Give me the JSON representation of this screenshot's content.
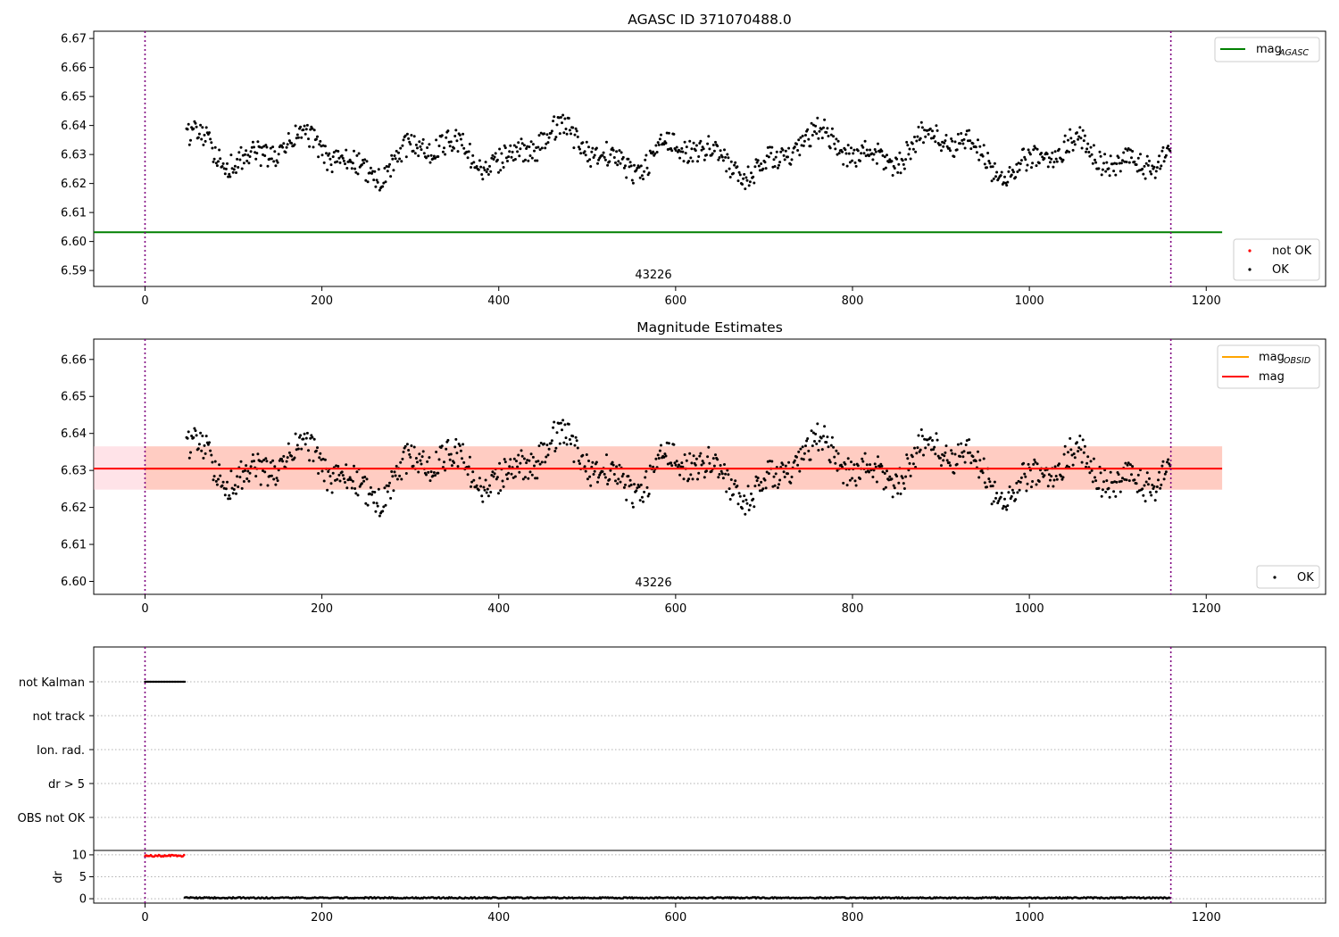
{
  "chart_data": [
    {
      "type": "scatter",
      "title": "AGASC ID 371070488.0",
      "xlim": [
        -58,
        1335
      ],
      "ylim": [
        6.5845,
        6.6725
      ],
      "xticks": [
        0,
        200,
        400,
        600,
        800,
        1000,
        1200
      ],
      "yticks": [
        "6.59",
        "6.60",
        "6.61",
        "6.62",
        "6.63",
        "6.64",
        "6.65",
        "6.66",
        "6.67"
      ],
      "annotation": "43226",
      "vlines": [
        0,
        1160
      ],
      "mag_agasc": 6.6032,
      "legend_upper": [
        {
          "label": "mag",
          "sub": "AGASC",
          "color": "#008000"
        }
      ],
      "legend_lower": [
        {
          "label": "not OK",
          "color": "#ff0000"
        },
        {
          "label": "OK",
          "color": "#000000"
        }
      ],
      "series": [
        {
          "name": "OK",
          "x_range": [
            47,
            1160
          ],
          "mean": 6.6305,
          "color": "#000000"
        }
      ]
    },
    {
      "type": "scatter",
      "title": "Magnitude Estimates",
      "xlim": [
        -58,
        1335
      ],
      "ylim": [
        6.5965,
        6.6655
      ],
      "xticks": [
        0,
        200,
        400,
        600,
        800,
        1000,
        1200
      ],
      "yticks": [
        "6.60",
        "6.61",
        "6.62",
        "6.63",
        "6.64",
        "6.65",
        "6.66"
      ],
      "annotation": "43226",
      "vlines": [
        0,
        1160
      ],
      "mag": 6.6305,
      "mag_band": [
        6.6248,
        6.6365
      ],
      "mag_obsid": 6.6305,
      "legend_upper": [
        {
          "label": "mag",
          "sub": "OBSID",
          "color": "#ffa500"
        },
        {
          "label": "mag",
          "sub": "",
          "color": "#ff0000"
        }
      ],
      "legend_lower": [
        {
          "label": "OK",
          "color": "#000000"
        }
      ],
      "series": [
        {
          "name": "OK",
          "x_range": [
            47,
            1160
          ],
          "mean": 6.6305,
          "color": "#000000"
        }
      ]
    },
    {
      "type": "scatter",
      "xlim": [
        -58,
        1335
      ],
      "flag_labels": [
        "not Kalman",
        "not track",
        "Ion. rad.",
        "dr > 5",
        "OBS not OK"
      ],
      "not_kalman_x": [
        0,
        45
      ],
      "vlines": [
        0,
        1160
      ],
      "xticks": [
        0,
        200,
        400,
        600,
        800,
        1000,
        1200
      ],
      "dr_ylabel": "dr",
      "dr_yticks": [
        "0",
        "5",
        "10"
      ],
      "dr_ylim": [
        -1,
        11
      ],
      "dr_segments": [
        {
          "x_range": [
            0,
            45
          ],
          "value": 9.8,
          "color": "#ff0000"
        },
        {
          "x_range": [
            45,
            1160
          ],
          "value": 0.2,
          "color": "#000000"
        }
      ]
    }
  ]
}
